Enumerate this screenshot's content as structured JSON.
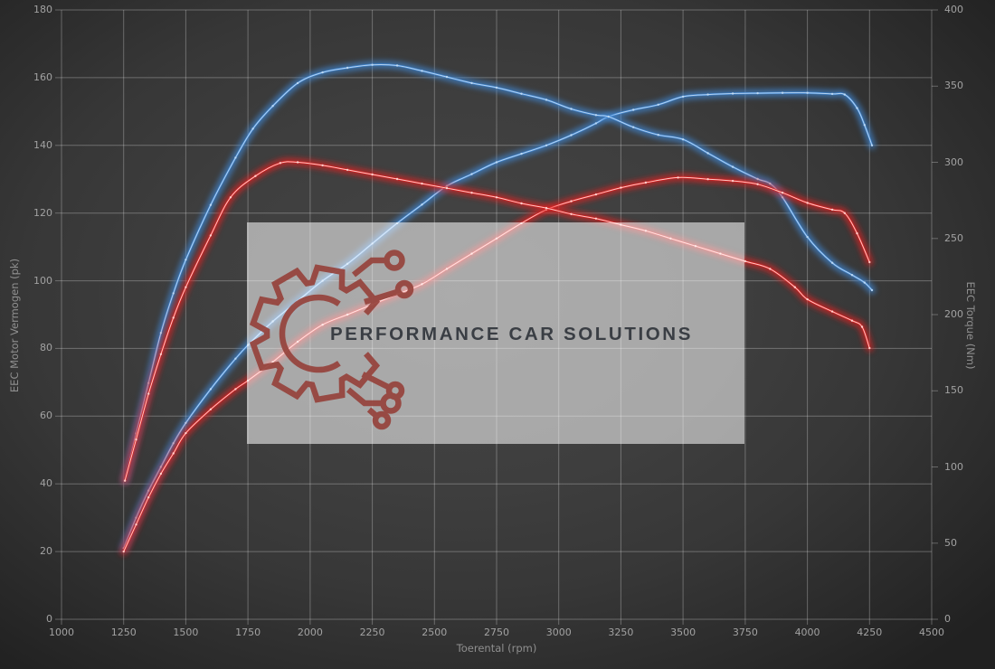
{
  "watermark": {
    "text": "PERFORMANCE CAR SOLUTIONS",
    "logo_icon": "gear-circuit-logo",
    "logo_color": "#96433c",
    "text_color": "#3a3e44"
  },
  "colors": {
    "blue_series": "#3f87d4",
    "blue_core": "#c2dcf5",
    "red_series": "#e02020",
    "red_core": "#ffd9d6",
    "grid": "rgba(255,255,255,0.28)",
    "tick_text": "#a2a2a2"
  },
  "chart_data": {
    "type": "line",
    "title": "",
    "xlabel": "Toerental (rpm)",
    "ylabel_left": "EEC Motor Vermogen (pk)",
    "ylabel_right": "EEC Torque (Nm)",
    "x_range": [
      1000,
      4500
    ],
    "x_ticks": [
      1000,
      1250,
      1500,
      1750,
      2000,
      2250,
      2500,
      2750,
      3000,
      3250,
      3500,
      3750,
      4000,
      4250,
      4500
    ],
    "y_left_range": [
      0,
      180
    ],
    "y_left_ticks": [
      0,
      20,
      40,
      60,
      80,
      100,
      120,
      140,
      160,
      180
    ],
    "y_right_range": [
      0,
      400
    ],
    "y_right_ticks": [
      0,
      50,
      100,
      150,
      200,
      250,
      300,
      350,
      400
    ],
    "grid": true,
    "legend": "none",
    "series": [
      {
        "name": "vermogen-blue",
        "axis": "left",
        "unit": "pk",
        "color": "#3f87d4",
        "core_color": "#c2dcf5",
        "points": [
          [
            1250,
            21
          ],
          [
            1300,
            30
          ],
          [
            1350,
            38
          ],
          [
            1400,
            45
          ],
          [
            1450,
            52
          ],
          [
            1500,
            58
          ],
          [
            1600,
            68
          ],
          [
            1700,
            77
          ],
          [
            1750,
            81
          ],
          [
            1850,
            88
          ],
          [
            1950,
            94
          ],
          [
            2050,
            100
          ],
          [
            2150,
            105
          ],
          [
            2250,
            111
          ],
          [
            2350,
            117
          ],
          [
            2450,
            122.5
          ],
          [
            2550,
            128
          ],
          [
            2650,
            131.5
          ],
          [
            2750,
            135
          ],
          [
            2850,
            137.5
          ],
          [
            2950,
            140
          ],
          [
            3050,
            143
          ],
          [
            3150,
            146.5
          ],
          [
            3200,
            148.5
          ],
          [
            3300,
            150.5
          ],
          [
            3400,
            152
          ],
          [
            3500,
            154.4
          ],
          [
            3600,
            155
          ],
          [
            3700,
            155.3
          ],
          [
            3800,
            155.4
          ],
          [
            3900,
            155.5
          ],
          [
            4000,
            155.5
          ],
          [
            4100,
            155.2
          ],
          [
            4150,
            155
          ],
          [
            4200,
            151
          ],
          [
            4230,
            146
          ],
          [
            4260,
            140
          ]
        ]
      },
      {
        "name": "torque-blue",
        "axis": "right",
        "unit": "Nm",
        "color": "#3f87d4",
        "core_color": "#c2dcf5",
        "points": [
          [
            1255,
            91
          ],
          [
            1300,
            122
          ],
          [
            1350,
            155
          ],
          [
            1400,
            188
          ],
          [
            1450,
            214
          ],
          [
            1500,
            236
          ],
          [
            1600,
            272
          ],
          [
            1700,
            303
          ],
          [
            1770,
            322
          ],
          [
            1850,
            337
          ],
          [
            1950,
            352
          ],
          [
            2050,
            359
          ],
          [
            2150,
            362
          ],
          [
            2250,
            364
          ],
          [
            2350,
            363.5
          ],
          [
            2450,
            360
          ],
          [
            2550,
            356
          ],
          [
            2650,
            352
          ],
          [
            2750,
            349
          ],
          [
            2850,
            345
          ],
          [
            2950,
            341
          ],
          [
            3050,
            335
          ],
          [
            3150,
            331
          ],
          [
            3200,
            330
          ],
          [
            3300,
            323
          ],
          [
            3400,
            318
          ],
          [
            3500,
            315
          ],
          [
            3600,
            306
          ],
          [
            3700,
            297
          ],
          [
            3800,
            289
          ],
          [
            3850,
            286
          ],
          [
            3900,
            277
          ],
          [
            4000,
            251
          ],
          [
            4100,
            234
          ],
          [
            4180,
            226
          ],
          [
            4230,
            221
          ],
          [
            4260,
            216
          ]
        ]
      },
      {
        "name": "vermogen-red",
        "axis": "left",
        "unit": "pk",
        "color": "#e02020",
        "core_color": "#ffd9d6",
        "points": [
          [
            1250,
            20
          ],
          [
            1300,
            28
          ],
          [
            1350,
            36
          ],
          [
            1400,
            43
          ],
          [
            1450,
            49
          ],
          [
            1500,
            55
          ],
          [
            1600,
            62
          ],
          [
            1700,
            68
          ],
          [
            1750,
            70.5
          ],
          [
            1850,
            76
          ],
          [
            1950,
            82
          ],
          [
            2050,
            87
          ],
          [
            2150,
            90
          ],
          [
            2250,
            93
          ],
          [
            2350,
            96
          ],
          [
            2450,
            99
          ],
          [
            2550,
            103.5
          ],
          [
            2650,
            108
          ],
          [
            2750,
            112.5
          ],
          [
            2850,
            117
          ],
          [
            2950,
            121
          ],
          [
            3050,
            123.5
          ],
          [
            3150,
            125.5
          ],
          [
            3250,
            127.5
          ],
          [
            3350,
            129
          ],
          [
            3480,
            130.5
          ],
          [
            3600,
            130
          ],
          [
            3700,
            129.5
          ],
          [
            3800,
            128.5
          ],
          [
            3900,
            126
          ],
          [
            4000,
            123
          ],
          [
            4100,
            121
          ],
          [
            4150,
            120
          ],
          [
            4200,
            114
          ],
          [
            4250,
            105.5
          ]
        ]
      },
      {
        "name": "torque-red",
        "axis": "right",
        "unit": "Nm",
        "color": "#e02020",
        "core_color": "#ffd9d6",
        "points": [
          [
            1255,
            91
          ],
          [
            1300,
            118
          ],
          [
            1350,
            148
          ],
          [
            1400,
            174
          ],
          [
            1450,
            198
          ],
          [
            1500,
            218
          ],
          [
            1600,
            252
          ],
          [
            1680,
            277
          ],
          [
            1780,
            291
          ],
          [
            1880,
            299.5
          ],
          [
            1950,
            300
          ],
          [
            2050,
            298
          ],
          [
            2150,
            295
          ],
          [
            2250,
            292
          ],
          [
            2350,
            289
          ],
          [
            2450,
            286
          ],
          [
            2550,
            283
          ],
          [
            2650,
            280
          ],
          [
            2750,
            277
          ],
          [
            2850,
            273
          ],
          [
            2950,
            270
          ],
          [
            3050,
            266
          ],
          [
            3150,
            263
          ],
          [
            3250,
            259
          ],
          [
            3350,
            255
          ],
          [
            3450,
            250
          ],
          [
            3550,
            245
          ],
          [
            3650,
            240
          ],
          [
            3750,
            235
          ],
          [
            3850,
            230
          ],
          [
            3950,
            218
          ],
          [
            4000,
            210
          ],
          [
            4100,
            202
          ],
          [
            4180,
            196
          ],
          [
            4220,
            192
          ],
          [
            4250,
            178
          ]
        ]
      }
    ]
  }
}
